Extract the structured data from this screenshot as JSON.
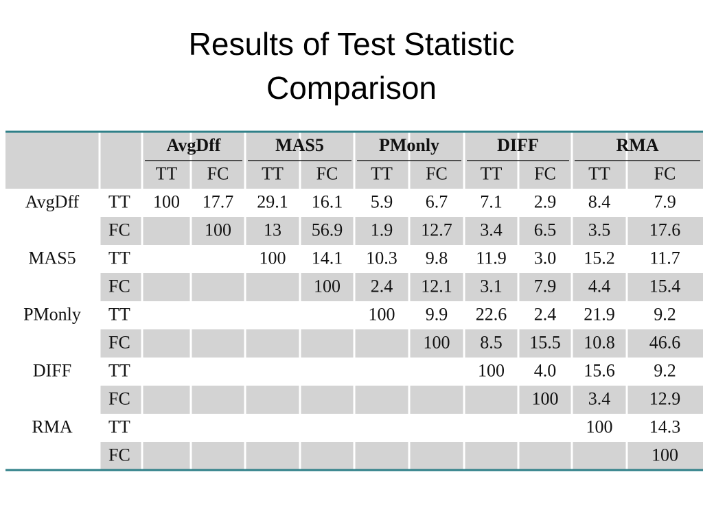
{
  "title": "Results of Test Statistic Comparison",
  "table": {
    "groups": [
      "AvgDff",
      "MAS5",
      "PMonly",
      "DIFF",
      "RMA"
    ],
    "subheaders": [
      "TT",
      "FC",
      "TT",
      "FC",
      "TT",
      "FC",
      "TT",
      "FC",
      "TT",
      "FC"
    ],
    "rows": [
      {
        "label": "AvgDff",
        "sub": "TT",
        "cells": [
          "100",
          "17.7",
          "29.1",
          "16.1",
          "5.9",
          "6.7",
          "7.1",
          "2.9",
          "8.4",
          "7.9"
        ]
      },
      {
        "sub": "FC",
        "cells": [
          null,
          "100",
          "13",
          "56.9",
          "1.9",
          "12.7",
          "3.4",
          "6.5",
          "3.5",
          "17.6"
        ]
      },
      {
        "label": "MAS5",
        "sub": "TT",
        "cells": [
          null,
          null,
          "100",
          "14.1",
          "10.3",
          "9.8",
          "11.9",
          "3.0",
          "15.2",
          "11.7"
        ]
      },
      {
        "sub": "FC",
        "cells": [
          null,
          null,
          null,
          "100",
          "2.4",
          "12.1",
          "3.1",
          "7.9",
          "4.4",
          "15.4"
        ]
      },
      {
        "label": "PMonly",
        "sub": "TT",
        "cells": [
          null,
          null,
          null,
          null,
          "100",
          "9.9",
          "22.6",
          "2.4",
          "21.9",
          "9.2"
        ]
      },
      {
        "sub": "FC",
        "cells": [
          null,
          null,
          null,
          null,
          null,
          "100",
          "8.5",
          "15.5",
          "10.8",
          "46.6"
        ]
      },
      {
        "label": "DIFF",
        "sub": "TT",
        "cells": [
          null,
          null,
          null,
          null,
          null,
          null,
          "100",
          "4.0",
          "15.6",
          "9.2"
        ]
      },
      {
        "sub": "FC",
        "cells": [
          null,
          null,
          null,
          null,
          null,
          null,
          null,
          "100",
          "3.4",
          "12.9"
        ]
      },
      {
        "label": "RMA",
        "sub": "TT",
        "cells": [
          null,
          null,
          null,
          null,
          null,
          null,
          null,
          null,
          "100",
          "14.3"
        ]
      },
      {
        "sub": "FC",
        "cells": [
          null,
          null,
          null,
          null,
          null,
          null,
          null,
          null,
          null,
          "100"
        ]
      }
    ]
  }
}
